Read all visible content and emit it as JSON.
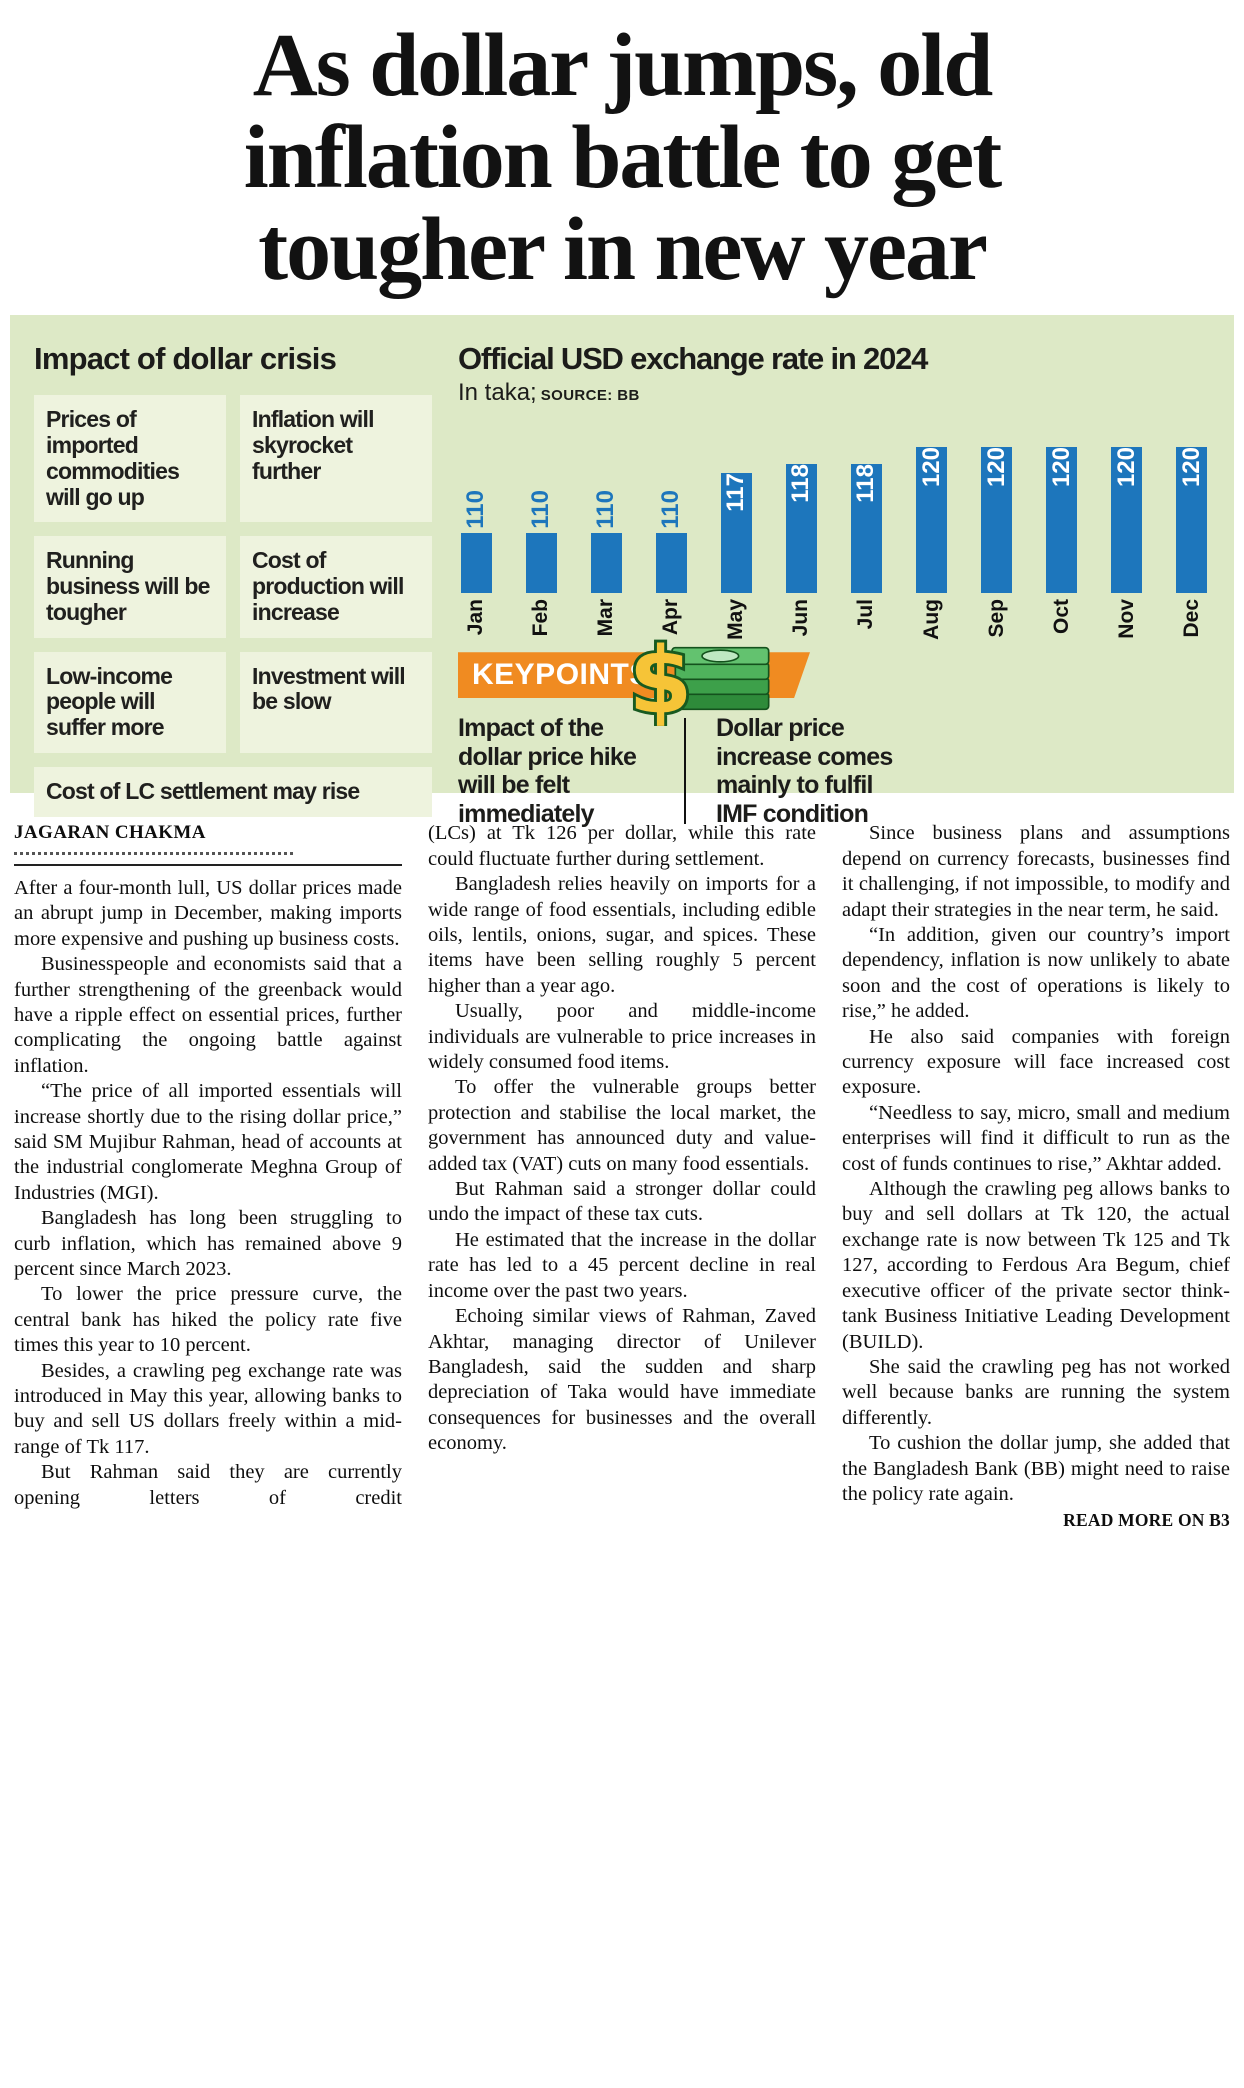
{
  "headline": {
    "lines": [
      "As dollar jumps, old",
      "inflation battle to get",
      "tougher in new year"
    ]
  },
  "colors": {
    "panel_green": "#dde9c6",
    "box_green": "#eef3de",
    "bar_blue": "#1d76bc",
    "banner_orange": "#f08b21"
  },
  "icons": {
    "keypoints": "dollar-money-stack-icon"
  },
  "infographic": {
    "impact": {
      "title": "Impact of dollar crisis",
      "items": [
        "Prices of imported commodities will go up",
        "Inflation will skyrocket further",
        "Running business will be tougher",
        "Cost of production will increase",
        "Low-income people will suffer more",
        "Investment will be slow",
        "Cost of LC settlement may rise"
      ]
    },
    "chart": {
      "title": "Official USD exchange rate in 2024",
      "subtitle": "In taka;",
      "source": "SOURCE: BB"
    },
    "keypoints": {
      "label": "KEYPOINTS",
      "points": [
        "Impact of the dollar price hike will be felt immediately",
        "Dollar price increase comes mainly to fulfil IMF condition"
      ]
    }
  },
  "chart_data": {
    "type": "bar",
    "title": "Official USD exchange rate in 2024",
    "ylabel": "In taka",
    "source": "SOURCE: BB",
    "categories": [
      "Jan",
      "Feb",
      "Mar",
      "Apr",
      "May",
      "Jun",
      "Jul",
      "Aug",
      "Sep",
      "Oct",
      "Nov",
      "Dec"
    ],
    "values": [
      110,
      110,
      110,
      110,
      117,
      118,
      118,
      120,
      120,
      120,
      120,
      120
    ],
    "ylim": [
      103,
      120
    ],
    "bar_color": "#1d76bc",
    "value_labels": "rotated 90deg, blue above short bars, white inside tall bars",
    "grid": false,
    "legend": "none"
  },
  "article": {
    "byline": "JAGARAN CHAKMA",
    "read_more": "READ MORE ON B3",
    "columns": [
      {
        "paragraphs": [
          {
            "text": "After a four-month lull, US dollar prices made an abrupt jump in December, making imports more expensive and pushing up business costs.",
            "indent": false
          },
          {
            "text": "Businesspeople and economists said that a further strengthening of the greenback would have a ripple effect on essential prices, further complicating the ongoing battle against inflation.",
            "indent": true
          },
          {
            "text": "“The price of all imported essentials will increase shortly due to the rising dollar price,” said SM Mujibur Rahman, head of accounts at the industrial conglomerate Meghna Group of Industries (MGI).",
            "indent": true
          },
          {
            "text": "Bangladesh has long been struggling to curb inflation, which has remained above 9 percent since March 2023.",
            "indent": true
          },
          {
            "text": "To lower the price pressure curve, the central bank has hiked the policy rate five times this year to 10 percent.",
            "indent": true
          },
          {
            "text": "Besides, a crawling peg exchange rate was introduced in May this year, allowing banks to buy and sell US dollars freely within a mid-range of Tk 117.",
            "indent": true
          },
          {
            "text": "But Rahman said they are currently opening letters of credit",
            "indent": true,
            "continues": true
          }
        ]
      },
      {
        "paragraphs": [
          {
            "text": "(LCs) at Tk 126 per dollar, while this rate could fluctuate further during settlement.",
            "indent": false
          },
          {
            "text": "Bangladesh relies heavily on imports for a wide range of food essentials, including edible oils, lentils, onions, sugar, and spices. These items have been selling roughly 5 percent higher than a year ago.",
            "indent": true
          },
          {
            "text": "Usually, poor and middle-income individuals are vulnerable to price increases in widely consumed food items.",
            "indent": true
          },
          {
            "text": "To offer the vulnerable groups better protection and stabilise the local market, the government has announced duty and value-added tax (VAT) cuts on many food essentials.",
            "indent": true
          },
          {
            "text": "But Rahman said a stronger dollar could undo the impact of these tax cuts.",
            "indent": true
          },
          {
            "text": "He estimated that the increase in the dollar rate has led to a 45 percent decline in real income over the past two years.",
            "indent": true
          },
          {
            "text": "Echoing similar views of Rahman, Zaved Akhtar, managing director of Unilever Bangladesh, said the sudden and sharp depreciation of Taka would have immediate consequences for businesses and the overall economy.",
            "indent": true
          }
        ]
      },
      {
        "paragraphs": [
          {
            "text": "Since business plans and assumptions depend on currency forecasts, businesses find it challenging, if not impossible, to modify and adapt their strategies in the near term, he said.",
            "indent": true
          },
          {
            "text": "“In addition, given our country’s import dependency, inflation is now unlikely to abate soon and the cost of operations is likely to rise,” he added.",
            "indent": true
          },
          {
            "text": "He also said companies with foreign currency exposure will face increased cost exposure.",
            "indent": true
          },
          {
            "text": "“Needless to say, micro, small and medium enterprises will find it difficult to run as the cost of funds continues to rise,” Akhtar added.",
            "indent": true
          },
          {
            "text": "Although the crawling peg allows banks to buy and sell dollars at Tk 120, the actual exchange rate is now between Tk 125 and Tk 127, according to Ferdous Ara Begum, chief executive officer of the private sector think-tank Business Initiative Leading Development (BUILD).",
            "indent": true
          },
          {
            "text": "She said the crawling peg has not worked well because banks are running the system differently.",
            "indent": true
          },
          {
            "text": "To cushion the dollar jump, she added that the Bangladesh Bank (BB) might need to raise the policy rate again.",
            "indent": true
          }
        ]
      }
    ]
  }
}
